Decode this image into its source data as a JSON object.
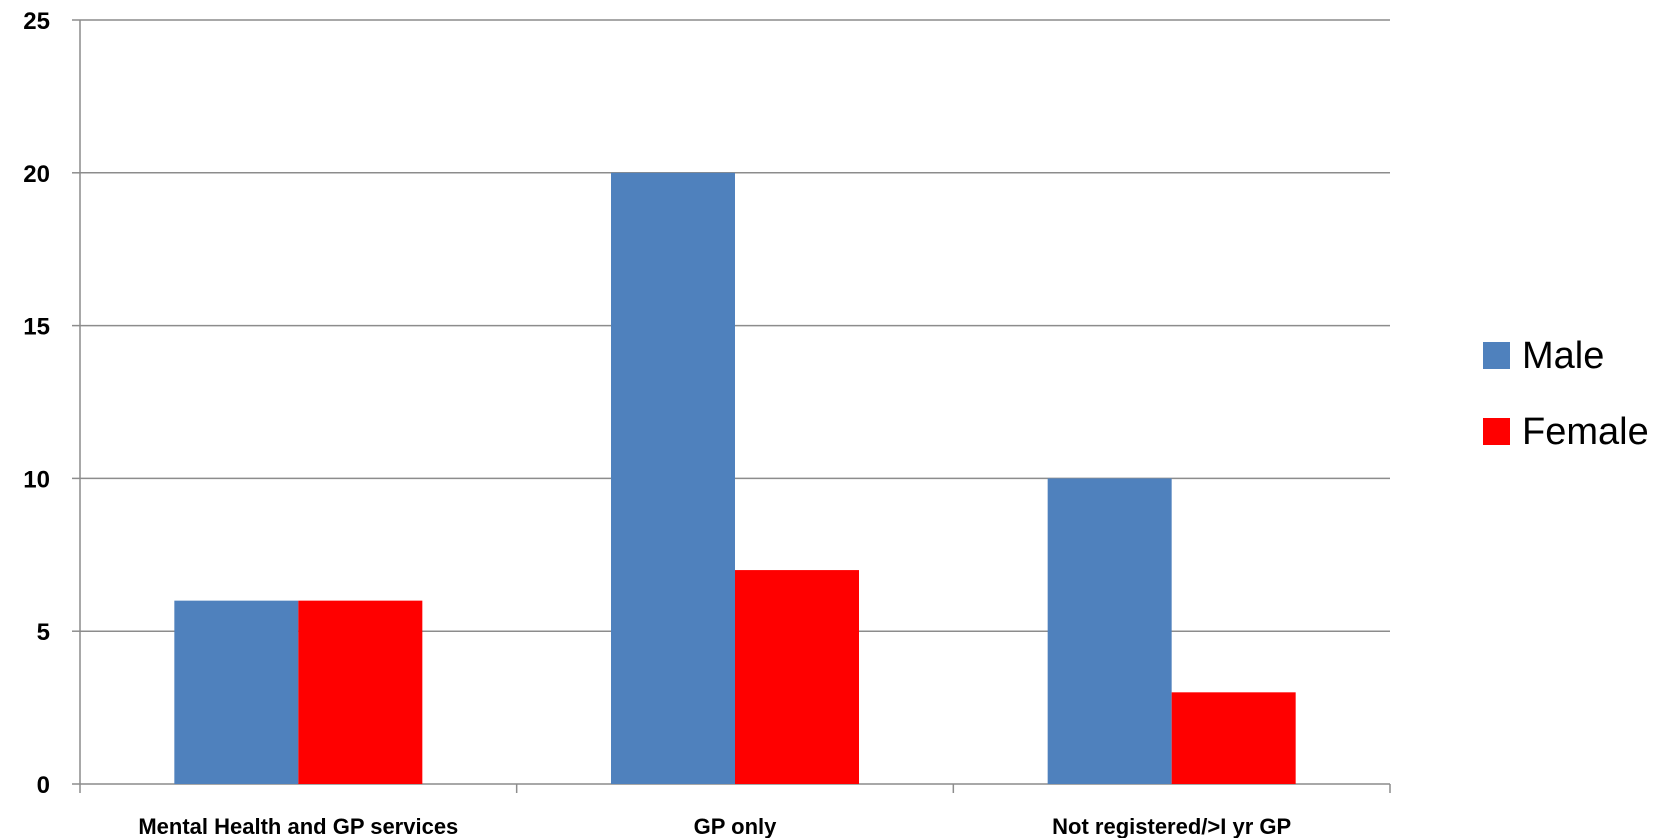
{
  "chart_data": {
    "type": "bar",
    "categories": [
      "Mental Health and GP services",
      "GP only",
      "Not registered/>I yr GP"
    ],
    "series": [
      {
        "name": "Male",
        "values": [
          6,
          20,
          10
        ],
        "color": "#4F81BD"
      },
      {
        "name": "Female",
        "values": [
          6,
          7,
          3
        ],
        "color": "#FF0000"
      }
    ],
    "title": "",
    "xlabel": "",
    "ylabel": "",
    "ylim": [
      0,
      25
    ],
    "yticks": [
      0,
      5,
      10,
      15,
      20,
      25
    ],
    "grid": true,
    "legend_position": "right"
  }
}
